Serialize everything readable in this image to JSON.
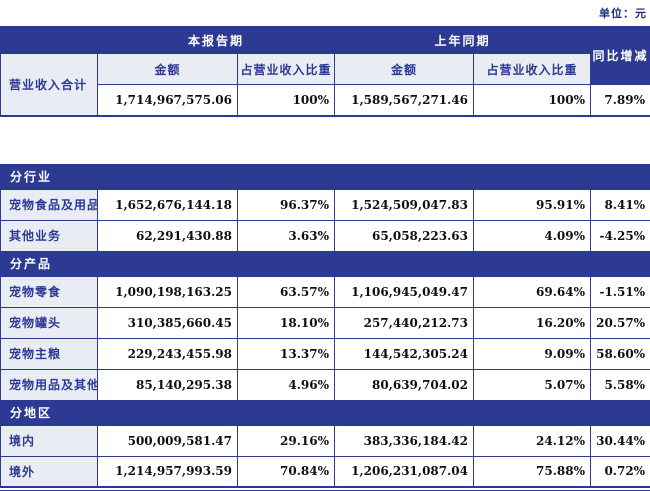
{
  "page": {
    "unit_label": "单位：元"
  },
  "colors": {
    "header_blue": "#2c3a94",
    "label_cell_bg": "#eaecf3",
    "label_text_blue": "#2c3a94",
    "number_text": "#0d0d16",
    "unit_label_navy": "#1e2c80"
  },
  "table1": {
    "current_period_header": "本报告期",
    "prior_period_header": "上年同期",
    "yoy_header": "同比增减",
    "amount_header": "金额",
    "share_header": "占营业收入比重",
    "total_label": "营业收入合计",
    "total_row": {
      "amount_cur": "1,714,967,575.06",
      "share_cur": "100%",
      "amount_prior": "1,589,567,271.46",
      "share_prior": "100%",
      "yoy": "7.89%"
    }
  },
  "table2": {
    "sections": [
      {
        "title": "分行业",
        "rows": [
          {
            "label": "宠物食品及用品",
            "amount_cur": "1,652,676,144.18",
            "share_cur": "96.37%",
            "amount_prior": "1,524,509,047.83",
            "share_prior": "95.91%",
            "yoy": "8.41%"
          },
          {
            "label": "其他业务",
            "amount_cur": "62,291,430.88",
            "share_cur": "3.63%",
            "amount_prior": "65,058,223.63",
            "share_prior": "4.09%",
            "yoy": "-4.25%"
          }
        ]
      },
      {
        "title": "分产品",
        "rows": [
          {
            "label": "宠物零食",
            "amount_cur": "1,090,198,163.25",
            "share_cur": "63.57%",
            "amount_prior": "1,106,945,049.47",
            "share_prior": "69.64%",
            "yoy": "-1.51%"
          },
          {
            "label": "宠物罐头",
            "amount_cur": "310,385,660.45",
            "share_cur": "18.10%",
            "amount_prior": "257,440,212.73",
            "share_prior": "16.20%",
            "yoy": "20.57%"
          },
          {
            "label": "宠物主粮",
            "amount_cur": "229,243,455.98",
            "share_cur": "13.37%",
            "amount_prior": "144,542,305.24",
            "share_prior": "9.09%",
            "yoy": "58.60%"
          },
          {
            "label": "宠物用品及其他",
            "amount_cur": "85,140,295.38",
            "share_cur": "4.96%",
            "amount_prior": "80,639,704.02",
            "share_prior": "5.07%",
            "yoy": "5.58%"
          }
        ]
      },
      {
        "title": "分地区",
        "rows": [
          {
            "label": "境内",
            "amount_cur": "500,009,581.47",
            "share_cur": "29.16%",
            "amount_prior": "383,336,184.42",
            "share_prior": "24.12%",
            "yoy": "30.44%"
          },
          {
            "label": "境外",
            "amount_cur": "1,214,957,993.59",
            "share_cur": "70.84%",
            "amount_prior": "1,206,231,087.04",
            "share_prior": "75.88%",
            "yoy": "0.72%"
          }
        ]
      }
    ]
  }
}
